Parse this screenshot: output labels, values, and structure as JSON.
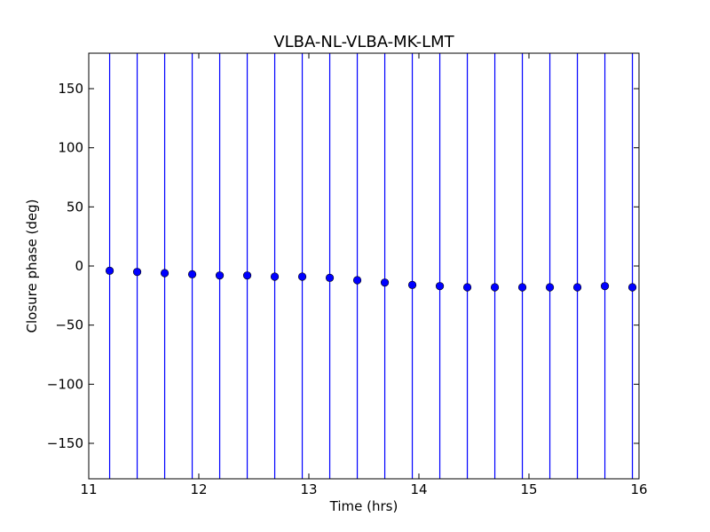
{
  "chart_data": {
    "type": "scatter",
    "title": "VLBA-NL-VLBA-MK-LMT",
    "xlabel": "Time (hrs)",
    "ylabel": "Closure phase (deg)",
    "xlim": [
      11,
      16
    ],
    "ylim": [
      -180,
      180
    ],
    "xticks": [
      11,
      12,
      13,
      14,
      15,
      16
    ],
    "xtick_labels": [
      "11",
      "12",
      "13",
      "14",
      "15",
      "16"
    ],
    "yticks": [
      -150,
      -100,
      -50,
      0,
      50,
      100,
      150
    ],
    "ytick_labels": [
      "−150",
      "−100",
      "−50",
      "0",
      "50",
      "100",
      "150"
    ],
    "grid": false,
    "legend": "none",
    "marker_color": "#0000ff",
    "errorbar_color": "#0000ff",
    "series": [
      {
        "x": [
          11.19,
          11.44,
          11.69,
          11.94,
          12.19,
          12.44,
          12.69,
          12.94,
          13.19,
          13.44,
          13.69,
          13.94,
          14.19,
          14.44,
          14.69,
          14.94,
          15.19,
          15.44,
          15.69,
          15.94
        ],
        "y": [
          -4,
          -5,
          -6,
          -7,
          -8,
          -8,
          -9,
          -9,
          -10,
          -12,
          -14,
          -16,
          -17,
          -18,
          -18,
          -18,
          -18,
          -18,
          -17,
          -18
        ],
        "yerr_low": [
          -180,
          -180,
          -180,
          -180,
          -180,
          -180,
          -180,
          -180,
          -180,
          -180,
          -180,
          -180,
          -180,
          -180,
          -180,
          -180,
          -180,
          -180,
          -180,
          -180
        ],
        "yerr_high": [
          180,
          180,
          180,
          180,
          180,
          180,
          180,
          180,
          180,
          180,
          180,
          180,
          180,
          180,
          180,
          180,
          180,
          180,
          180,
          180
        ]
      }
    ]
  }
}
